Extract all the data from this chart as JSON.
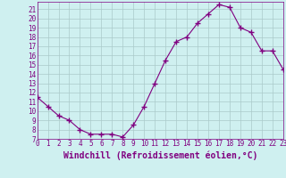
{
  "x": [
    0,
    1,
    2,
    3,
    4,
    5,
    6,
    7,
    8,
    9,
    10,
    11,
    12,
    13,
    14,
    15,
    16,
    17,
    18,
    19,
    20,
    21,
    22,
    23
  ],
  "y": [
    11.5,
    10.5,
    9.5,
    9.0,
    8.0,
    7.5,
    7.5,
    7.5,
    7.2,
    8.5,
    10.5,
    13.0,
    15.5,
    17.5,
    18.0,
    19.5,
    20.5,
    21.5,
    21.2,
    19.0,
    18.5,
    16.5,
    16.5,
    14.5
  ],
  "xlabel": "Windchill (Refroidissement éolien,°C)",
  "background_color": "#cff0f0",
  "line_color": "#800080",
  "marker_color": "#800080",
  "grid_color": "#aacaca",
  "ylim": [
    7,
    21.8
  ],
  "xlim": [
    0,
    23
  ],
  "yticks": [
    7,
    8,
    9,
    10,
    11,
    12,
    13,
    14,
    15,
    16,
    17,
    18,
    19,
    20,
    21
  ],
  "xticks": [
    0,
    1,
    2,
    3,
    4,
    5,
    6,
    7,
    8,
    9,
    10,
    11,
    12,
    13,
    14,
    15,
    16,
    17,
    18,
    19,
    20,
    21,
    22,
    23
  ],
  "tick_fontsize": 5.5,
  "xlabel_fontsize": 7.0
}
